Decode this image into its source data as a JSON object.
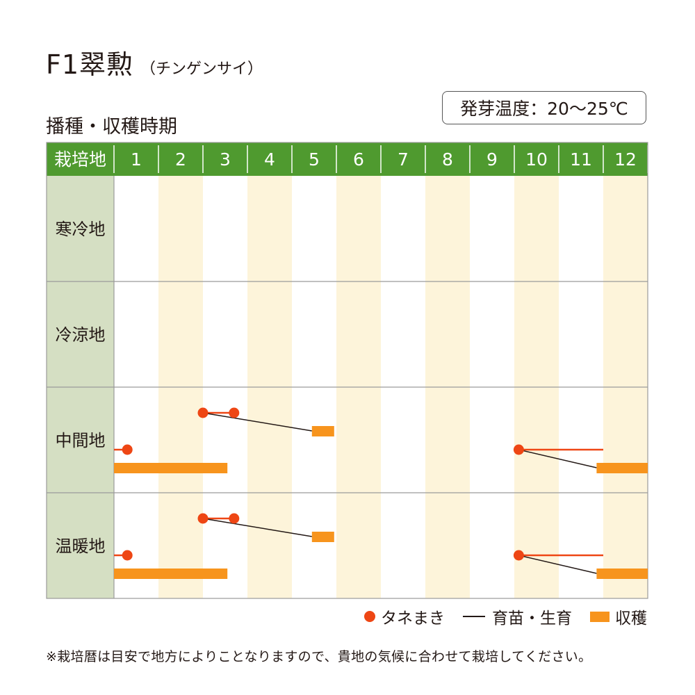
{
  "title": {
    "main": "F1翠勲",
    "sub": "（チンゲンサイ）"
  },
  "subheading": "播種・収穫時期",
  "temperature_label": "発芽温度：20〜25℃",
  "colors": {
    "header_green": "#4f9a2f",
    "label_bg": "#d5dfc3",
    "stripe": "#fdf4da",
    "sow_dot": "#ee4614",
    "sow_line": "#ee4614",
    "grow_line": "#231815",
    "harvest_bar": "#f7941d",
    "grid": "#9a9a9a"
  },
  "legend": [
    {
      "key": "sow",
      "label": "タネまき"
    },
    {
      "key": "grow",
      "label": "育苗・生育"
    },
    {
      "key": "harvest",
      "label": "収穫"
    }
  ],
  "note": "※栽培暦は目安で地方によりことなりますので、貴地の気候に合わせて栽培してください。",
  "chart_data": {
    "type": "table",
    "header_label": "栽培地",
    "months": [
      "1",
      "2",
      "3",
      "4",
      "5",
      "6",
      "7",
      "8",
      "9",
      "10",
      "11",
      "12"
    ],
    "regions": [
      {
        "name": "寒冷地",
        "schedules": []
      },
      {
        "name": "冷涼地",
        "schedules": []
      },
      {
        "name": "中間地",
        "schedules": [
          {
            "sow": [
              3.0,
              3.7
            ],
            "harvest": [
              5.45,
              5.95
            ]
          },
          {
            "sow": [
              0.8,
              1.3
            ],
            "harvest": [
              1.0,
              3.55
            ],
            "continues_from_prev_year": true
          },
          {
            "sow": [
              10.1,
              12.0
            ],
            "harvest": [
              11.85,
              13.0
            ]
          }
        ]
      },
      {
        "name": "温暖地",
        "schedules": [
          {
            "sow": [
              3.0,
              3.7
            ],
            "harvest": [
              5.45,
              5.95
            ]
          },
          {
            "sow": [
              0.8,
              1.3
            ],
            "harvest": [
              1.0,
              3.55
            ],
            "continues_from_prev_year": true
          },
          {
            "sow": [
              10.1,
              12.0
            ],
            "harvest": [
              11.85,
              13.0
            ]
          }
        ]
      }
    ]
  }
}
